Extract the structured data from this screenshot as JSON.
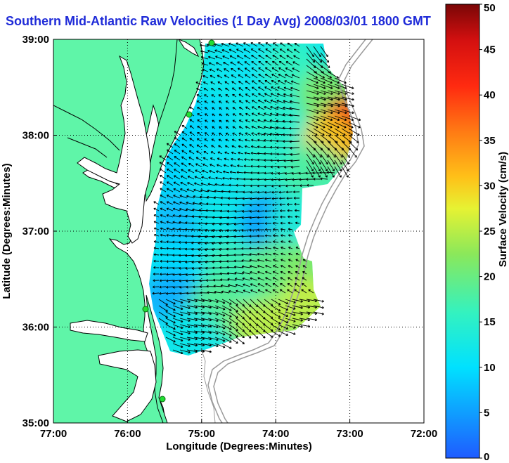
{
  "title": "Southern Mid-Atlantic Raw Velocities (1 Day Avg) 2008/03/01 1800 GMT",
  "axes": {
    "xlabel": "Longitude (Degrees:Minutes)",
    "ylabel": "Latitude (Degrees:Minutes)",
    "x_ticks": [
      "77:00",
      "76:00",
      "75:00",
      "74:00",
      "73:00",
      "72:00"
    ],
    "y_ticks": [
      "39:00",
      "38:00",
      "37:00",
      "36:00",
      "35:00"
    ]
  },
  "colorbar": {
    "label": "Surface Velocity (cm/s)",
    "ticks": [
      "50",
      "45",
      "40",
      "35",
      "30",
      "25",
      "20",
      "15",
      "10",
      "5",
      "0"
    ],
    "range": [
      0,
      50
    ]
  },
  "chart_data": {
    "type": "heatmap",
    "title": "Southern Mid-Atlantic Raw Velocities (1 Day Avg) 2008/03/01 1800 GMT",
    "xlabel": "Longitude (Degrees:Minutes)",
    "ylabel": "Latitude (Degrees:Minutes)",
    "xlim": [
      -77,
      -72
    ],
    "ylim": [
      35,
      39
    ],
    "colorbar_label": "Surface Velocity (cm/s)",
    "colorbar_range": [
      0,
      50
    ],
    "grid": true,
    "speed_samples": [
      {
        "lon": -74.9,
        "lat": 38.8,
        "speed": 12
      },
      {
        "lon": -74.4,
        "lat": 38.8,
        "speed": 11
      },
      {
        "lon": -73.8,
        "lat": 38.7,
        "speed": 16
      },
      {
        "lon": -73.3,
        "lat": 38.4,
        "speed": 22
      },
      {
        "lon": -73.0,
        "lat": 38.1,
        "speed": 40
      },
      {
        "lon": -73.3,
        "lat": 37.9,
        "speed": 30
      },
      {
        "lon": -74.0,
        "lat": 38.1,
        "speed": 15
      },
      {
        "lon": -75.0,
        "lat": 38.1,
        "speed": 9
      },
      {
        "lon": -75.5,
        "lat": 37.7,
        "speed": 9
      },
      {
        "lon": -74.8,
        "lat": 37.6,
        "speed": 11
      },
      {
        "lon": -74.1,
        "lat": 37.6,
        "speed": 15
      },
      {
        "lon": -73.5,
        "lat": 37.6,
        "speed": 18
      },
      {
        "lon": -75.3,
        "lat": 37.1,
        "speed": 7
      },
      {
        "lon": -74.7,
        "lat": 37.1,
        "speed": 12
      },
      {
        "lon": -74.1,
        "lat": 37.1,
        "speed": 5
      },
      {
        "lon": -73.7,
        "lat": 37.1,
        "speed": 14
      },
      {
        "lon": -75.3,
        "lat": 36.6,
        "speed": 10
      },
      {
        "lon": -74.6,
        "lat": 36.6,
        "speed": 17
      },
      {
        "lon": -74.0,
        "lat": 36.6,
        "speed": 20
      },
      {
        "lon": -73.5,
        "lat": 36.6,
        "speed": 22
      },
      {
        "lon": -73.6,
        "lat": 36.2,
        "speed": 26
      },
      {
        "lon": -75.4,
        "lat": 36.3,
        "speed": 6
      },
      {
        "lon": -74.8,
        "lat": 36.2,
        "speed": 19
      },
      {
        "lon": -74.2,
        "lat": 36.0,
        "speed": 26
      },
      {
        "lon": -75.2,
        "lat": 35.9,
        "speed": 12
      }
    ]
  },
  "colors": {
    "land": "#5ff5a8",
    "title": "#1f2bd8",
    "coast": "#000000",
    "bathymetry": "#9a9a9a",
    "station_marker": "#22dd33"
  }
}
